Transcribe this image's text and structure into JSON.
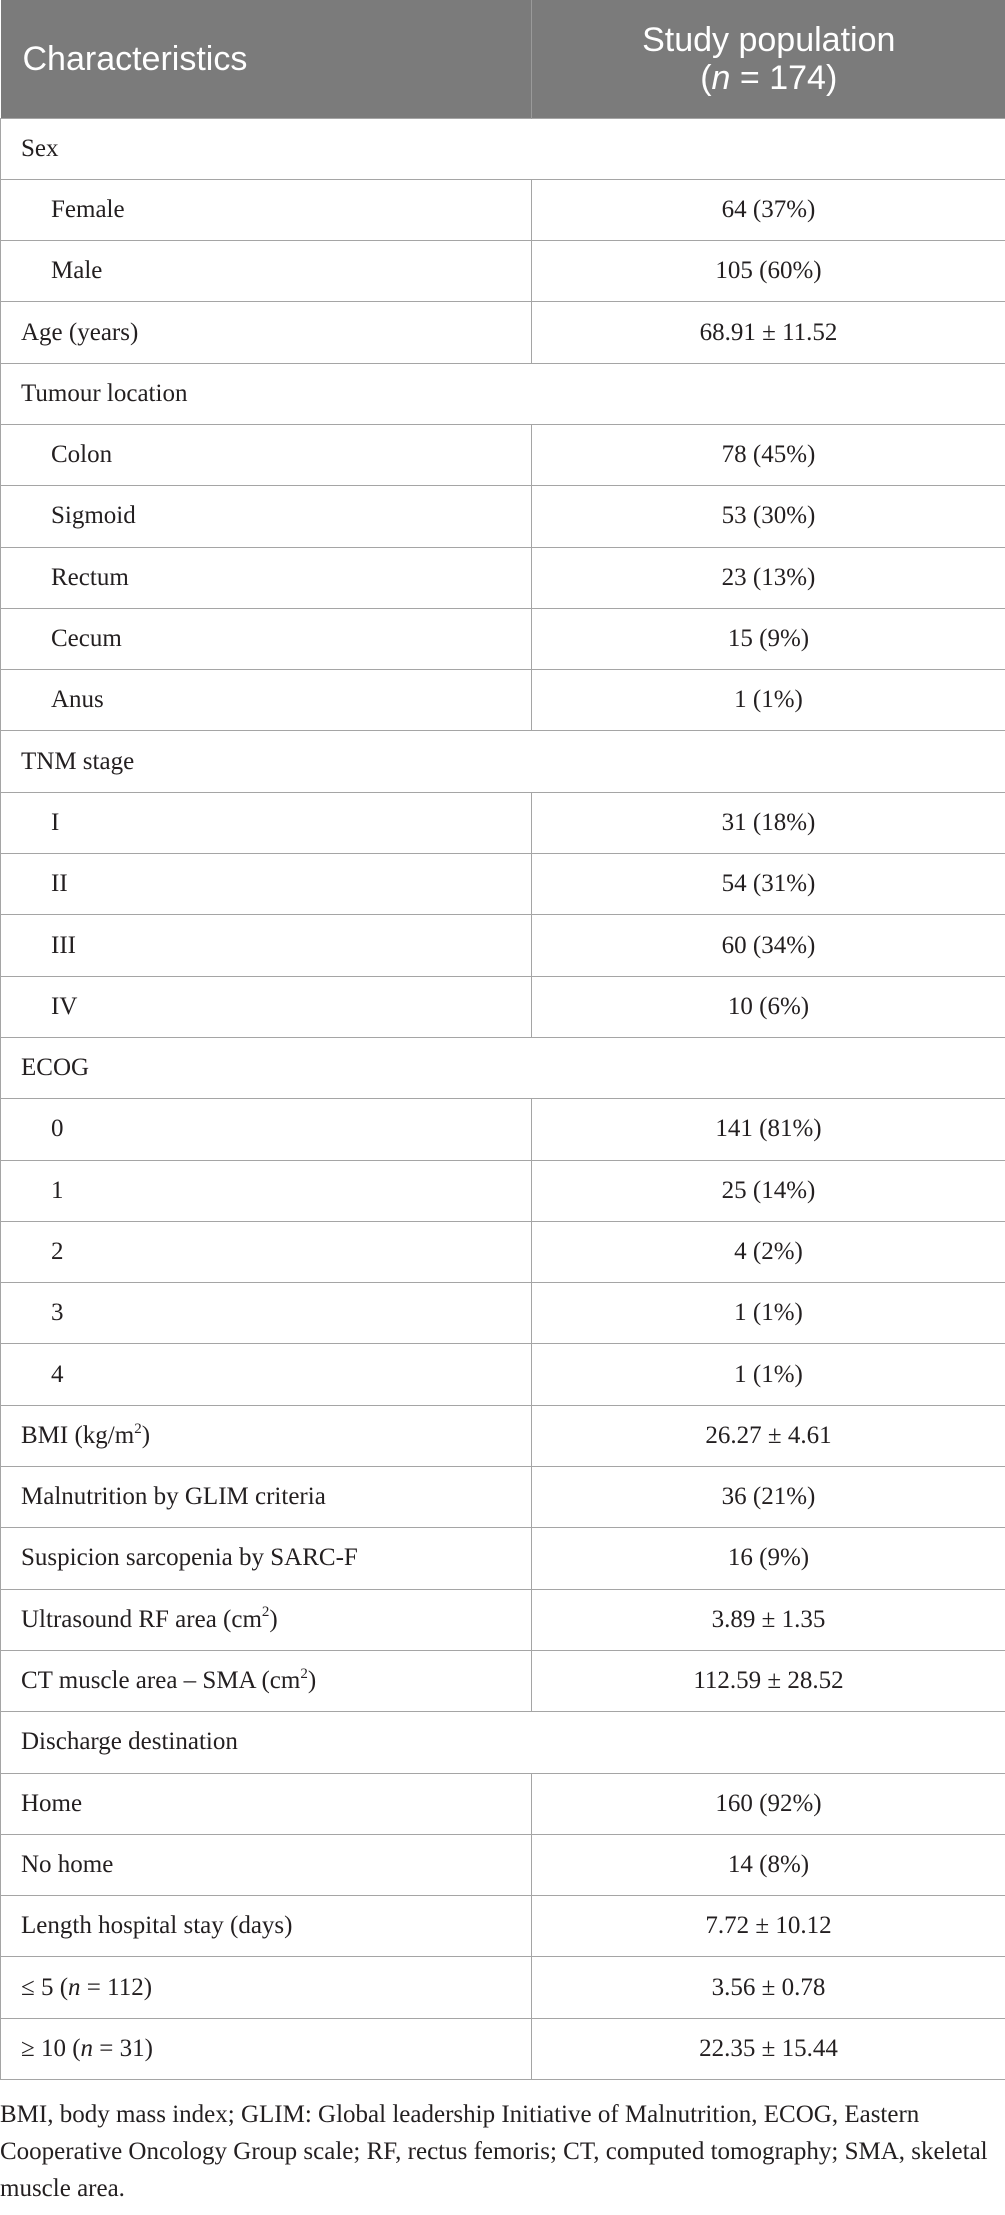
{
  "header": {
    "characteristics": "Characteristics",
    "study_population": "Study population",
    "n_label": "n",
    "n_value": "= 174)"
  },
  "rows": {
    "sex": "Sex",
    "female": "Female",
    "female_v": "64 (37%)",
    "male": "Male",
    "male_v": "105 (60%)",
    "age": "Age (years)",
    "age_v": "68.91 ± 11.52",
    "tumour": "Tumour location",
    "colon": "Colon",
    "colon_v": "78 (45%)",
    "sigmoid": "Sigmoid",
    "sigmoid_v": "53 (30%)",
    "rectum": "Rectum",
    "rectum_v": "23 (13%)",
    "cecum": "Cecum",
    "cecum_v": "15 (9%)",
    "anus": "Anus",
    "anus_v": "1 (1%)",
    "tnm": "TNM stage",
    "tnm_i": "I",
    "tnm_i_v": "31 (18%)",
    "tnm_ii": "II",
    "tnm_ii_v": "54 (31%)",
    "tnm_iii": "III",
    "tnm_iii_v": "60 (34%)",
    "tnm_iv": "IV",
    "tnm_iv_v": "10 (6%)",
    "ecog": "ECOG",
    "ecog_0": "0",
    "ecog_0_v": "141 (81%)",
    "ecog_1": "1",
    "ecog_1_v": "25 (14%)",
    "ecog_2": "2",
    "ecog_2_v": "4 (2%)",
    "ecog_3": "3",
    "ecog_3_v": "1 (1%)",
    "ecog_4": "4",
    "ecog_4_v": "1 (1%)",
    "bmi_pre": "BMI (kg/m",
    "bmi_sup": "2",
    "bmi_post": ")",
    "bmi_v": "26.27 ± 4.61",
    "glim": "Malnutrition by GLIM criteria",
    "glim_v": "36 (21%)",
    "sarcf": "Suspicion sarcopenia by SARC-F",
    "sarcf_v": "16 (9%)",
    "rf_pre": "Ultrasound RF area (cm",
    "rf_sup": "2",
    "rf_post": ")",
    "rf_v": "3.89 ± 1.35",
    "ct_pre": "CT muscle area – SMA (cm",
    "ct_sup": "2",
    "ct_post": ")",
    "ct_v": "112.59 ± 28.52",
    "discharge": "Discharge destination",
    "home": "Home",
    "home_v": "160 (92%)",
    "nohome": "No home",
    "nohome_v": "14 (8%)",
    "los": "Length hospital stay (days)",
    "los_v": "7.72 ± 10.12",
    "le5_pre": "≤ 5 (",
    "le5_n": "n",
    "le5_post": " = 112)",
    "le5_v": "3.56 ± 0.78",
    "ge10_pre": "≥ 10 (",
    "ge10_n": "n",
    "ge10_post": " = 31)",
    "ge10_v": "22.35 ± 15.44"
  },
  "footnote": "BMI, body mass index; GLIM: Global leadership Initiative of Malnutrition, ECOG, Eastern Cooperative Oncology Group scale; RF, rectus femoris; CT, computed tomography; SMA, skeletal muscle area."
}
